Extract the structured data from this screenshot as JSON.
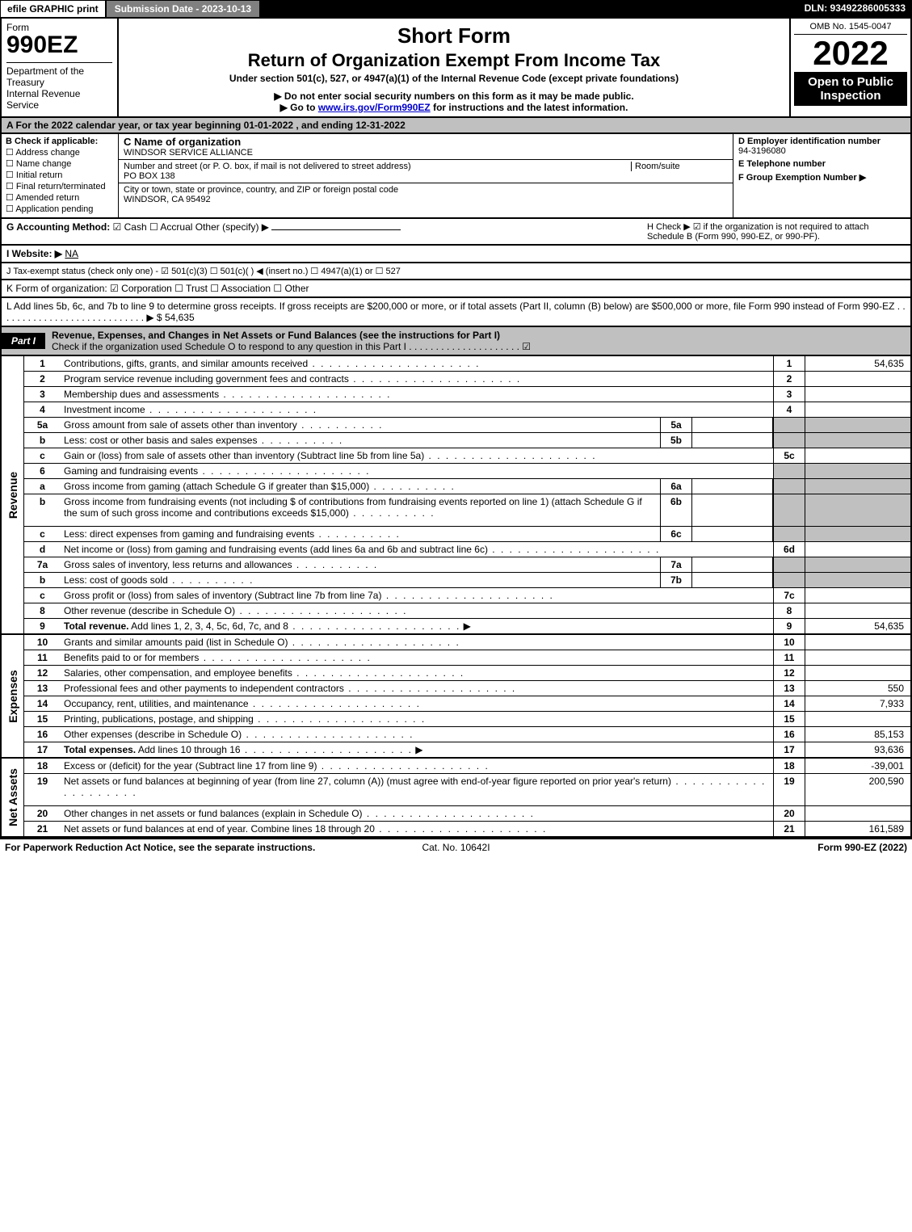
{
  "topbar": {
    "efile": "efile GRAPHIC print",
    "submission": "Submission Date - 2023-10-13",
    "dln": "DLN: 93492286005333"
  },
  "header": {
    "form_label": "Form",
    "form_number": "990EZ",
    "dept": "Department of the Treasury\nInternal Revenue Service",
    "short_form": "Short Form",
    "title": "Return of Organization Exempt From Income Tax",
    "sub1": "Under section 501(c), 527, or 4947(a)(1) of the Internal Revenue Code (except private foundations)",
    "sub2": "▶ Do not enter social security numbers on this form as it may be made public.",
    "sub3_pre": "▶ Go to ",
    "sub3_link": "www.irs.gov/Form990EZ",
    "sub3_post": " for instructions and the latest information.",
    "omb": "OMB No. 1545-0047",
    "year": "2022",
    "inspect": "Open to Public Inspection"
  },
  "row_a": "A  For the 2022 calendar year, or tax year beginning 01-01-2022  , and ending 12-31-2022",
  "col_b": {
    "label": "B  Check if applicable:",
    "items": [
      "Address change",
      "Name change",
      "Initial return",
      "Final return/terminated",
      "Amended return",
      "Application pending"
    ]
  },
  "col_c": {
    "name_label": "C Name of organization",
    "name": "WINDSOR SERVICE ALLIANCE",
    "addr_label": "Number and street (or P. O. box, if mail is not delivered to street address)",
    "room_label": "Room/suite",
    "addr": "PO BOX 138",
    "city_label": "City or town, state or province, country, and ZIP or foreign postal code",
    "city": "WINDSOR, CA  95492"
  },
  "col_d": {
    "ein_label": "D Employer identification number",
    "ein": "94-3196080",
    "tel_label": "E Telephone number",
    "tel": "",
    "group_label": "F Group Exemption Number  ▶",
    "group": ""
  },
  "row_g": {
    "label": "G Accounting Method:",
    "opts": "☑ Cash   ☐ Accrual   Other (specify) ▶",
    "h_label": "H  Check ▶  ☑  if the organization is not required to attach Schedule B (Form 990, 990-EZ, or 990-PF)."
  },
  "row_i": {
    "label": "I Website: ▶",
    "value": "NA"
  },
  "row_j": "J Tax-exempt status (check only one) -  ☑ 501(c)(3)  ☐  501(c)(   ) ◀ (insert no.)  ☐  4947(a)(1) or  ☐  527",
  "row_k": "K Form of organization:   ☑ Corporation   ☐ Trust   ☐ Association   ☐ Other",
  "row_l": {
    "text": "L Add lines 5b, 6c, and 7b to line 9 to determine gross receipts. If gross receipts are $200,000 or more, or if total assets (Part II, column (B) below) are $500,000 or more, file Form 990 instead of Form 990-EZ  .  .  .  .  .  .  .  .  .  .  .  .  .  .  .  .  .  .  .  .  .  .  .  .  .  .  .  .  ▶ $",
    "amount": " 54,635"
  },
  "part1": {
    "label": "Part I",
    "title": "Revenue, Expenses, and Changes in Net Assets or Fund Balances (see the instructions for Part I)",
    "sub": "Check if the organization used Schedule O to respond to any question in this Part I  .  .  .  .  .  .  .  .  .  .  .  .  .  .  .  .  .  .  .  .  .  ☑"
  },
  "sections": [
    {
      "side": "Revenue",
      "rows": [
        {
          "n": "1",
          "d": "Contributions, gifts, grants, and similar amounts received",
          "rn": "1",
          "rv": "54,635"
        },
        {
          "n": "2",
          "d": "Program service revenue including government fees and contracts",
          "rn": "2",
          "rv": ""
        },
        {
          "n": "3",
          "d": "Membership dues and assessments",
          "rn": "3",
          "rv": ""
        },
        {
          "n": "4",
          "d": "Investment income",
          "rn": "4",
          "rv": ""
        },
        {
          "n": "5a",
          "d": "Gross amount from sale of assets other than inventory",
          "mn": "5a",
          "mv": "",
          "grey_r": true
        },
        {
          "n": "b",
          "d": "Less: cost or other basis and sales expenses",
          "mn": "5b",
          "mv": "",
          "grey_r": true
        },
        {
          "n": "c",
          "d": "Gain or (loss) from sale of assets other than inventory (Subtract line 5b from line 5a)",
          "rn": "5c",
          "rv": ""
        },
        {
          "n": "6",
          "d": "Gaming and fundraising events",
          "grey_r": true,
          "no_r": true
        },
        {
          "n": "a",
          "d": "Gross income from gaming (attach Schedule G if greater than $15,000)",
          "mn": "6a",
          "mv": "",
          "grey_r": true
        },
        {
          "n": "b",
          "d": "Gross income from fundraising events (not including $                          of contributions from fundraising events reported on line 1) (attach Schedule G if the sum of such gross income and contributions exceeds $15,000)",
          "mn": "6b",
          "mv": "",
          "grey_r": true,
          "tall": true
        },
        {
          "n": "c",
          "d": "Less: direct expenses from gaming and fundraising events",
          "mn": "6c",
          "mv": "",
          "grey_r": true
        },
        {
          "n": "d",
          "d": "Net income or (loss) from gaming and fundraising events (add lines 6a and 6b and subtract line 6c)",
          "rn": "6d",
          "rv": ""
        },
        {
          "n": "7a",
          "d": "Gross sales of inventory, less returns and allowances",
          "mn": "7a",
          "mv": "",
          "grey_r": true
        },
        {
          "n": "b",
          "d": "Less: cost of goods sold",
          "mn": "7b",
          "mv": "",
          "grey_r": true
        },
        {
          "n": "c",
          "d": "Gross profit or (loss) from sales of inventory (Subtract line 7b from line 7a)",
          "rn": "7c",
          "rv": ""
        },
        {
          "n": "8",
          "d": "Other revenue (describe in Schedule O)",
          "rn": "8",
          "rv": ""
        },
        {
          "n": "9",
          "d": "Total revenue. Add lines 1, 2, 3, 4, 5c, 6d, 7c, and 8",
          "rn": "9",
          "rv": "54,635",
          "bold": true,
          "arrow": true
        }
      ]
    },
    {
      "side": "Expenses",
      "rows": [
        {
          "n": "10",
          "d": "Grants and similar amounts paid (list in Schedule O)",
          "rn": "10",
          "rv": ""
        },
        {
          "n": "11",
          "d": "Benefits paid to or for members",
          "rn": "11",
          "rv": ""
        },
        {
          "n": "12",
          "d": "Salaries, other compensation, and employee benefits",
          "rn": "12",
          "rv": ""
        },
        {
          "n": "13",
          "d": "Professional fees and other payments to independent contractors",
          "rn": "13",
          "rv": "550"
        },
        {
          "n": "14",
          "d": "Occupancy, rent, utilities, and maintenance",
          "rn": "14",
          "rv": "7,933"
        },
        {
          "n": "15",
          "d": "Printing, publications, postage, and shipping",
          "rn": "15",
          "rv": ""
        },
        {
          "n": "16",
          "d": "Other expenses (describe in Schedule O)",
          "rn": "16",
          "rv": "85,153"
        },
        {
          "n": "17",
          "d": "Total expenses. Add lines 10 through 16",
          "rn": "17",
          "rv": "93,636",
          "bold": true,
          "arrow": true
        }
      ]
    },
    {
      "side": "Net Assets",
      "rows": [
        {
          "n": "18",
          "d": "Excess or (deficit) for the year (Subtract line 17 from line 9)",
          "rn": "18",
          "rv": "-39,001"
        },
        {
          "n": "19",
          "d": "Net assets or fund balances at beginning of year (from line 27, column (A)) (must agree with end-of-year figure reported on prior year's return)",
          "rn": "19",
          "rv": "200,590",
          "tall": true
        },
        {
          "n": "20",
          "d": "Other changes in net assets or fund balances (explain in Schedule O)",
          "rn": "20",
          "rv": ""
        },
        {
          "n": "21",
          "d": "Net assets or fund balances at end of year. Combine lines 18 through 20",
          "rn": "21",
          "rv": "161,589"
        }
      ]
    }
  ],
  "footer": {
    "left": "For Paperwork Reduction Act Notice, see the separate instructions.",
    "mid": "Cat. No. 10642I",
    "right_pre": "Form ",
    "right_bold": "990-EZ",
    "right_post": " (2022)"
  }
}
